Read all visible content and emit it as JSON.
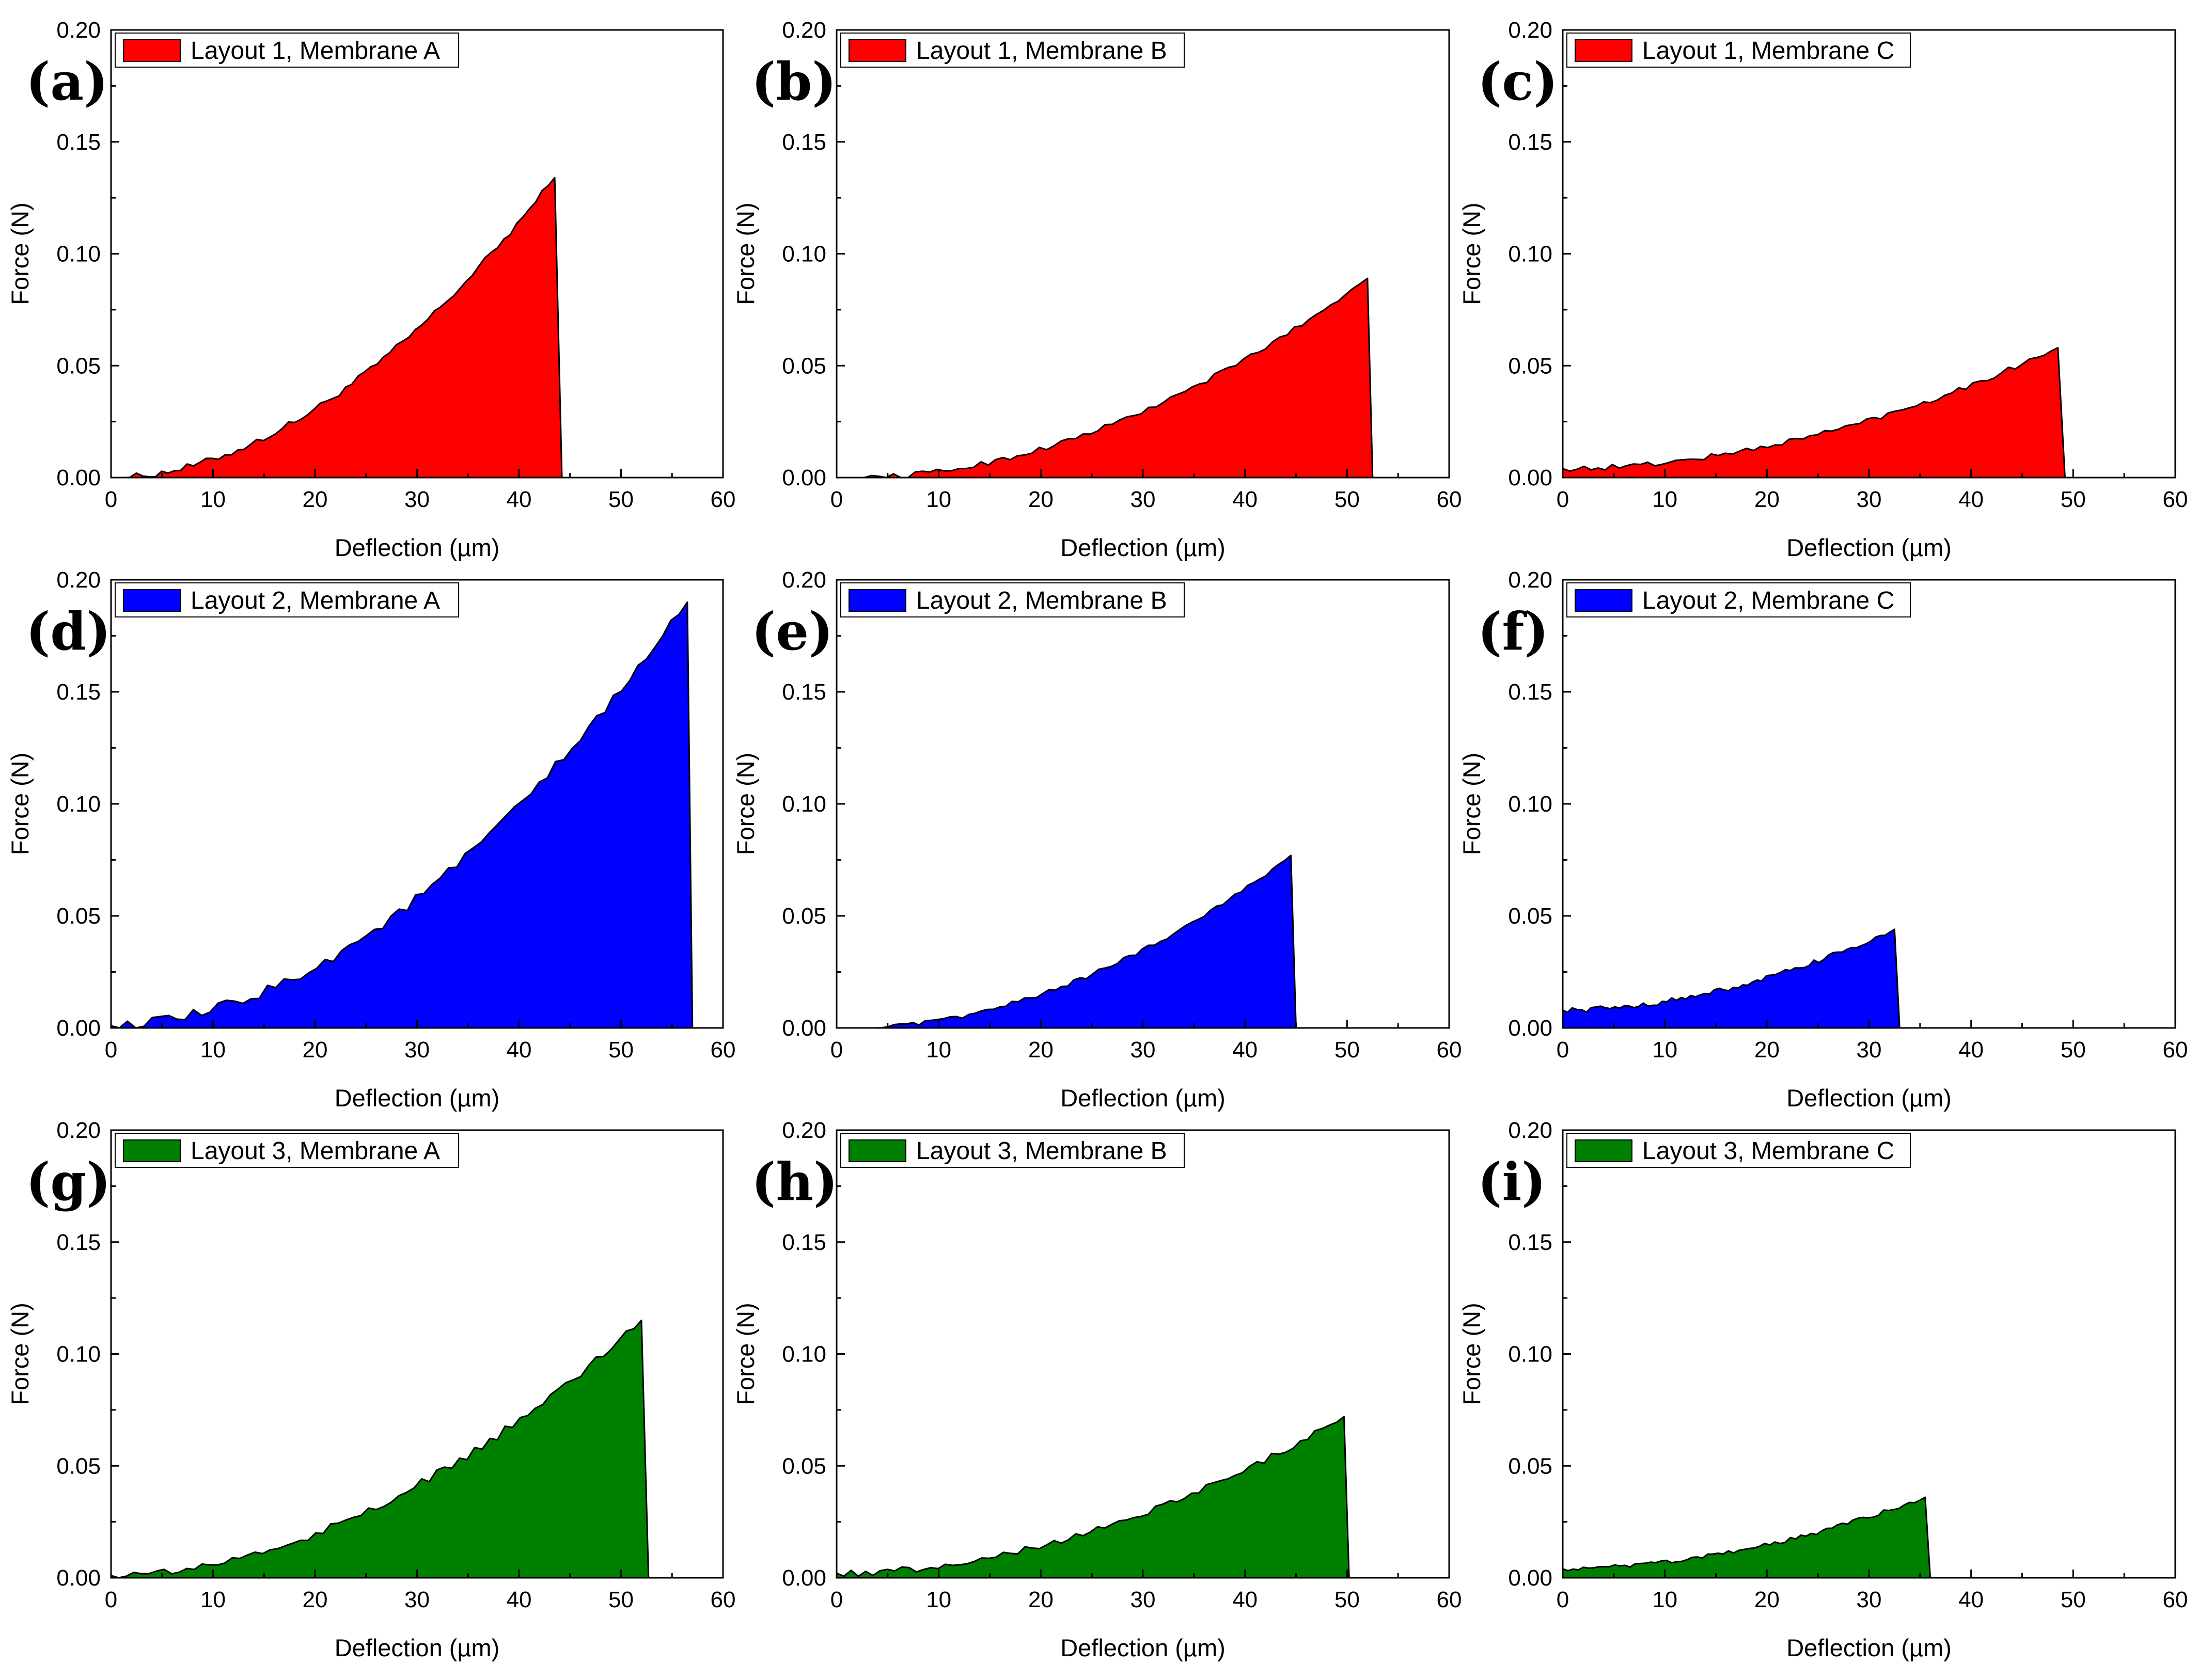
{
  "chart_data": [
    {
      "type": "area",
      "panel_label": "(a)",
      "legend": "Layout 1, Membrane A",
      "color": "#FF0000",
      "xlabel": "Deflection (µm)",
      "ylabel": "Force (N)",
      "xlim": [
        0,
        60
      ],
      "ylim": [
        0,
        0.2
      ],
      "x_ticks": [
        "0",
        "10",
        "20",
        "30",
        "40",
        "50",
        "60"
      ],
      "y_ticks": [
        "0.00",
        "0.05",
        "0.10",
        "0.15",
        "0.20"
      ],
      "legend_position": "top-left",
      "grid": false,
      "peak_x": 43.5,
      "peak_y": 0.134,
      "end_x": 44.2,
      "noise": 0.0015,
      "start_x": 0,
      "start_y": 0.0
    },
    {
      "type": "area",
      "panel_label": "(b)",
      "legend": "Layout 1, Membrane B",
      "color": "#FF0000",
      "xlabel": "Deflection (µm)",
      "ylabel": "Force (N)",
      "xlim": [
        0,
        60
      ],
      "ylim": [
        0,
        0.2
      ],
      "x_ticks": [
        "0",
        "10",
        "20",
        "30",
        "40",
        "50",
        "60"
      ],
      "y_ticks": [
        "0.00",
        "0.05",
        "0.10",
        "0.15",
        "0.20"
      ],
      "legend_position": "top-left",
      "grid": false,
      "peak_x": 52.0,
      "peak_y": 0.089,
      "end_x": 52.5,
      "noise": 0.0012,
      "start_x": 2,
      "start_y": 0.0
    },
    {
      "type": "area",
      "panel_label": "(c)",
      "legend": "Layout 1, Membrane C",
      "color": "#FF0000",
      "xlabel": "Deflection (µm)",
      "ylabel": "Force (N)",
      "xlim": [
        0,
        60
      ],
      "ylim": [
        0,
        0.2
      ],
      "x_ticks": [
        "0",
        "10",
        "20",
        "30",
        "40",
        "50",
        "60"
      ],
      "y_ticks": [
        "0.00",
        "0.05",
        "0.10",
        "0.15",
        "0.20"
      ],
      "legend_position": "top-left",
      "grid": false,
      "peak_x": 48.5,
      "peak_y": 0.058,
      "end_x": 49.2,
      "noise": 0.0012,
      "start_x": 0,
      "start_y": 0.004
    },
    {
      "type": "area",
      "panel_label": "(d)",
      "legend": "Layout 2, Membrane A",
      "color": "#0000FF",
      "xlabel": "Deflection (µm)",
      "ylabel": "Force (N)",
      "xlim": [
        0,
        60
      ],
      "ylim": [
        0,
        0.2
      ],
      "x_ticks": [
        "0",
        "10",
        "20",
        "30",
        "40",
        "50",
        "60"
      ],
      "y_ticks": [
        "0.00",
        "0.05",
        "0.10",
        "0.15",
        "0.20"
      ],
      "legend_position": "top-left",
      "grid": false,
      "peak_x": 56.5,
      "peak_y": 0.19,
      "end_x": 57.0,
      "noise": 0.0025,
      "start_x": 0,
      "start_y": 0.001
    },
    {
      "type": "area",
      "panel_label": "(e)",
      "legend": "Layout 2, Membrane B",
      "color": "#0000FF",
      "xlabel": "Deflection (µm)",
      "ylabel": "Force (N)",
      "xlim": [
        0,
        60
      ],
      "ylim": [
        0,
        0.2
      ],
      "x_ticks": [
        "0",
        "10",
        "20",
        "30",
        "40",
        "50",
        "60"
      ],
      "y_ticks": [
        "0.00",
        "0.05",
        "0.10",
        "0.15",
        "0.20"
      ],
      "legend_position": "top-left",
      "grid": false,
      "peak_x": 44.5,
      "peak_y": 0.077,
      "end_x": 45.0,
      "noise": 0.001,
      "start_x": 2,
      "start_y": 0.0
    },
    {
      "type": "area",
      "panel_label": "(f)",
      "legend": "Layout 2, Membrane C",
      "color": "#0000FF",
      "xlabel": "Deflection (µm)",
      "ylabel": "Force (N)",
      "xlim": [
        0,
        60
      ],
      "ylim": [
        0,
        0.2
      ],
      "x_ticks": [
        "0",
        "10",
        "20",
        "30",
        "40",
        "50",
        "60"
      ],
      "y_ticks": [
        "0.00",
        "0.05",
        "0.10",
        "0.15",
        "0.20"
      ],
      "legend_position": "top-left",
      "grid": false,
      "peak_x": 32.5,
      "peak_y": 0.044,
      "end_x": 33.0,
      "noise": 0.0012,
      "start_x": 0,
      "start_y": 0.008
    },
    {
      "type": "area",
      "panel_label": "(g)",
      "legend": "Layout 3, Membrane A",
      "color": "#008000",
      "xlabel": "Deflection (µm)",
      "ylabel": "Force (N)",
      "xlim": [
        0,
        60
      ],
      "ylim": [
        0,
        0.2
      ],
      "x_ticks": [
        "0",
        "10",
        "20",
        "30",
        "40",
        "50",
        "60"
      ],
      "y_ticks": [
        "0.00",
        "0.05",
        "0.10",
        "0.15",
        "0.20"
      ],
      "legend_position": "top-left",
      "grid": false,
      "peak_x": 52.0,
      "peak_y": 0.115,
      "end_x": 52.7,
      "noise": 0.002,
      "start_x": 0,
      "start_y": 0.001
    },
    {
      "type": "area",
      "panel_label": "(h)",
      "legend": "Layout 3, Membrane B",
      "color": "#008000",
      "xlabel": "Deflection (µm)",
      "ylabel": "Force (N)",
      "xlim": [
        0,
        60
      ],
      "ylim": [
        0,
        0.2
      ],
      "x_ticks": [
        "0",
        "10",
        "20",
        "30",
        "40",
        "50",
        "60"
      ],
      "y_ticks": [
        "0.00",
        "0.05",
        "0.10",
        "0.15",
        "0.20"
      ],
      "legend_position": "top-left",
      "grid": false,
      "peak_x": 49.7,
      "peak_y": 0.072,
      "end_x": 50.2,
      "noise": 0.0015,
      "start_x": 0,
      "start_y": 0.002
    },
    {
      "type": "area",
      "panel_label": "(i)",
      "legend": "Layout 3, Membrane C",
      "color": "#008000",
      "xlabel": "Deflection (µm)",
      "ylabel": "Force (N)",
      "xlim": [
        0,
        60
      ],
      "ylim": [
        0,
        0.2
      ],
      "x_ticks": [
        "0",
        "10",
        "20",
        "30",
        "40",
        "50",
        "60"
      ],
      "y_ticks": [
        "0.00",
        "0.05",
        "0.10",
        "0.15",
        "0.20"
      ],
      "legend_position": "top-left",
      "grid": false,
      "peak_x": 35.5,
      "peak_y": 0.036,
      "end_x": 36.0,
      "noise": 0.001,
      "start_x": 0,
      "start_y": 0.004
    }
  ]
}
